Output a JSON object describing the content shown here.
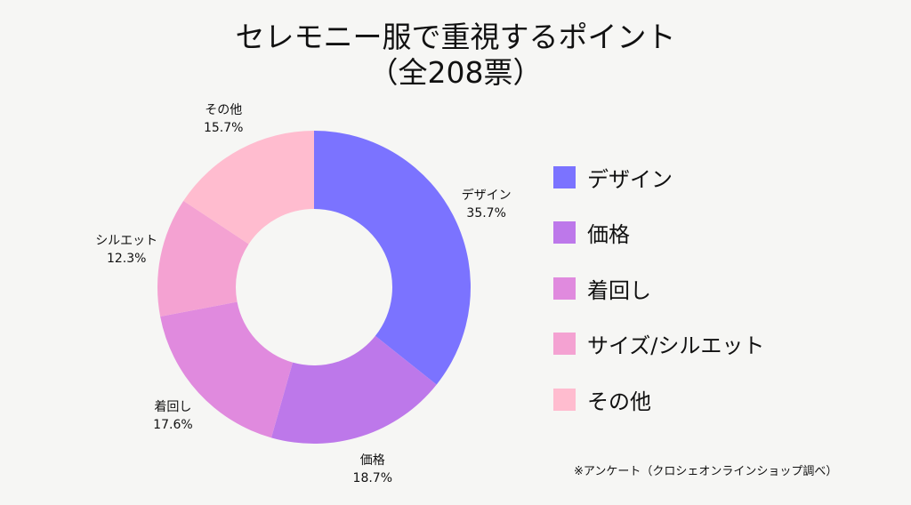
{
  "chart_data": {
    "type": "pie",
    "donut": true,
    "title": "セレモニー服で重視するポイント",
    "subtitle": "（全208票）",
    "categories": [
      "デザイン",
      "価格",
      "着回し",
      "シルエット",
      "その他"
    ],
    "values": [
      35.7,
      18.7,
      17.6,
      12.3,
      15.7
    ],
    "value_labels": [
      "35.7%",
      "18.7%",
      "17.6%",
      "12.3%",
      "15.7%"
    ],
    "colors": [
      "#7b73ff",
      "#bd78ea",
      "#e08ade",
      "#f4a2d2",
      "#ffbccf"
    ],
    "legend": {
      "placement": "right",
      "entries": [
        "デザイン",
        "価格",
        "着回し",
        "サイズ/シルエット",
        "その他"
      ]
    },
    "start_angle": "top",
    "direction": "clockwise"
  },
  "footnote": "※アンケート（クロシェオンラインショップ調べ）"
}
